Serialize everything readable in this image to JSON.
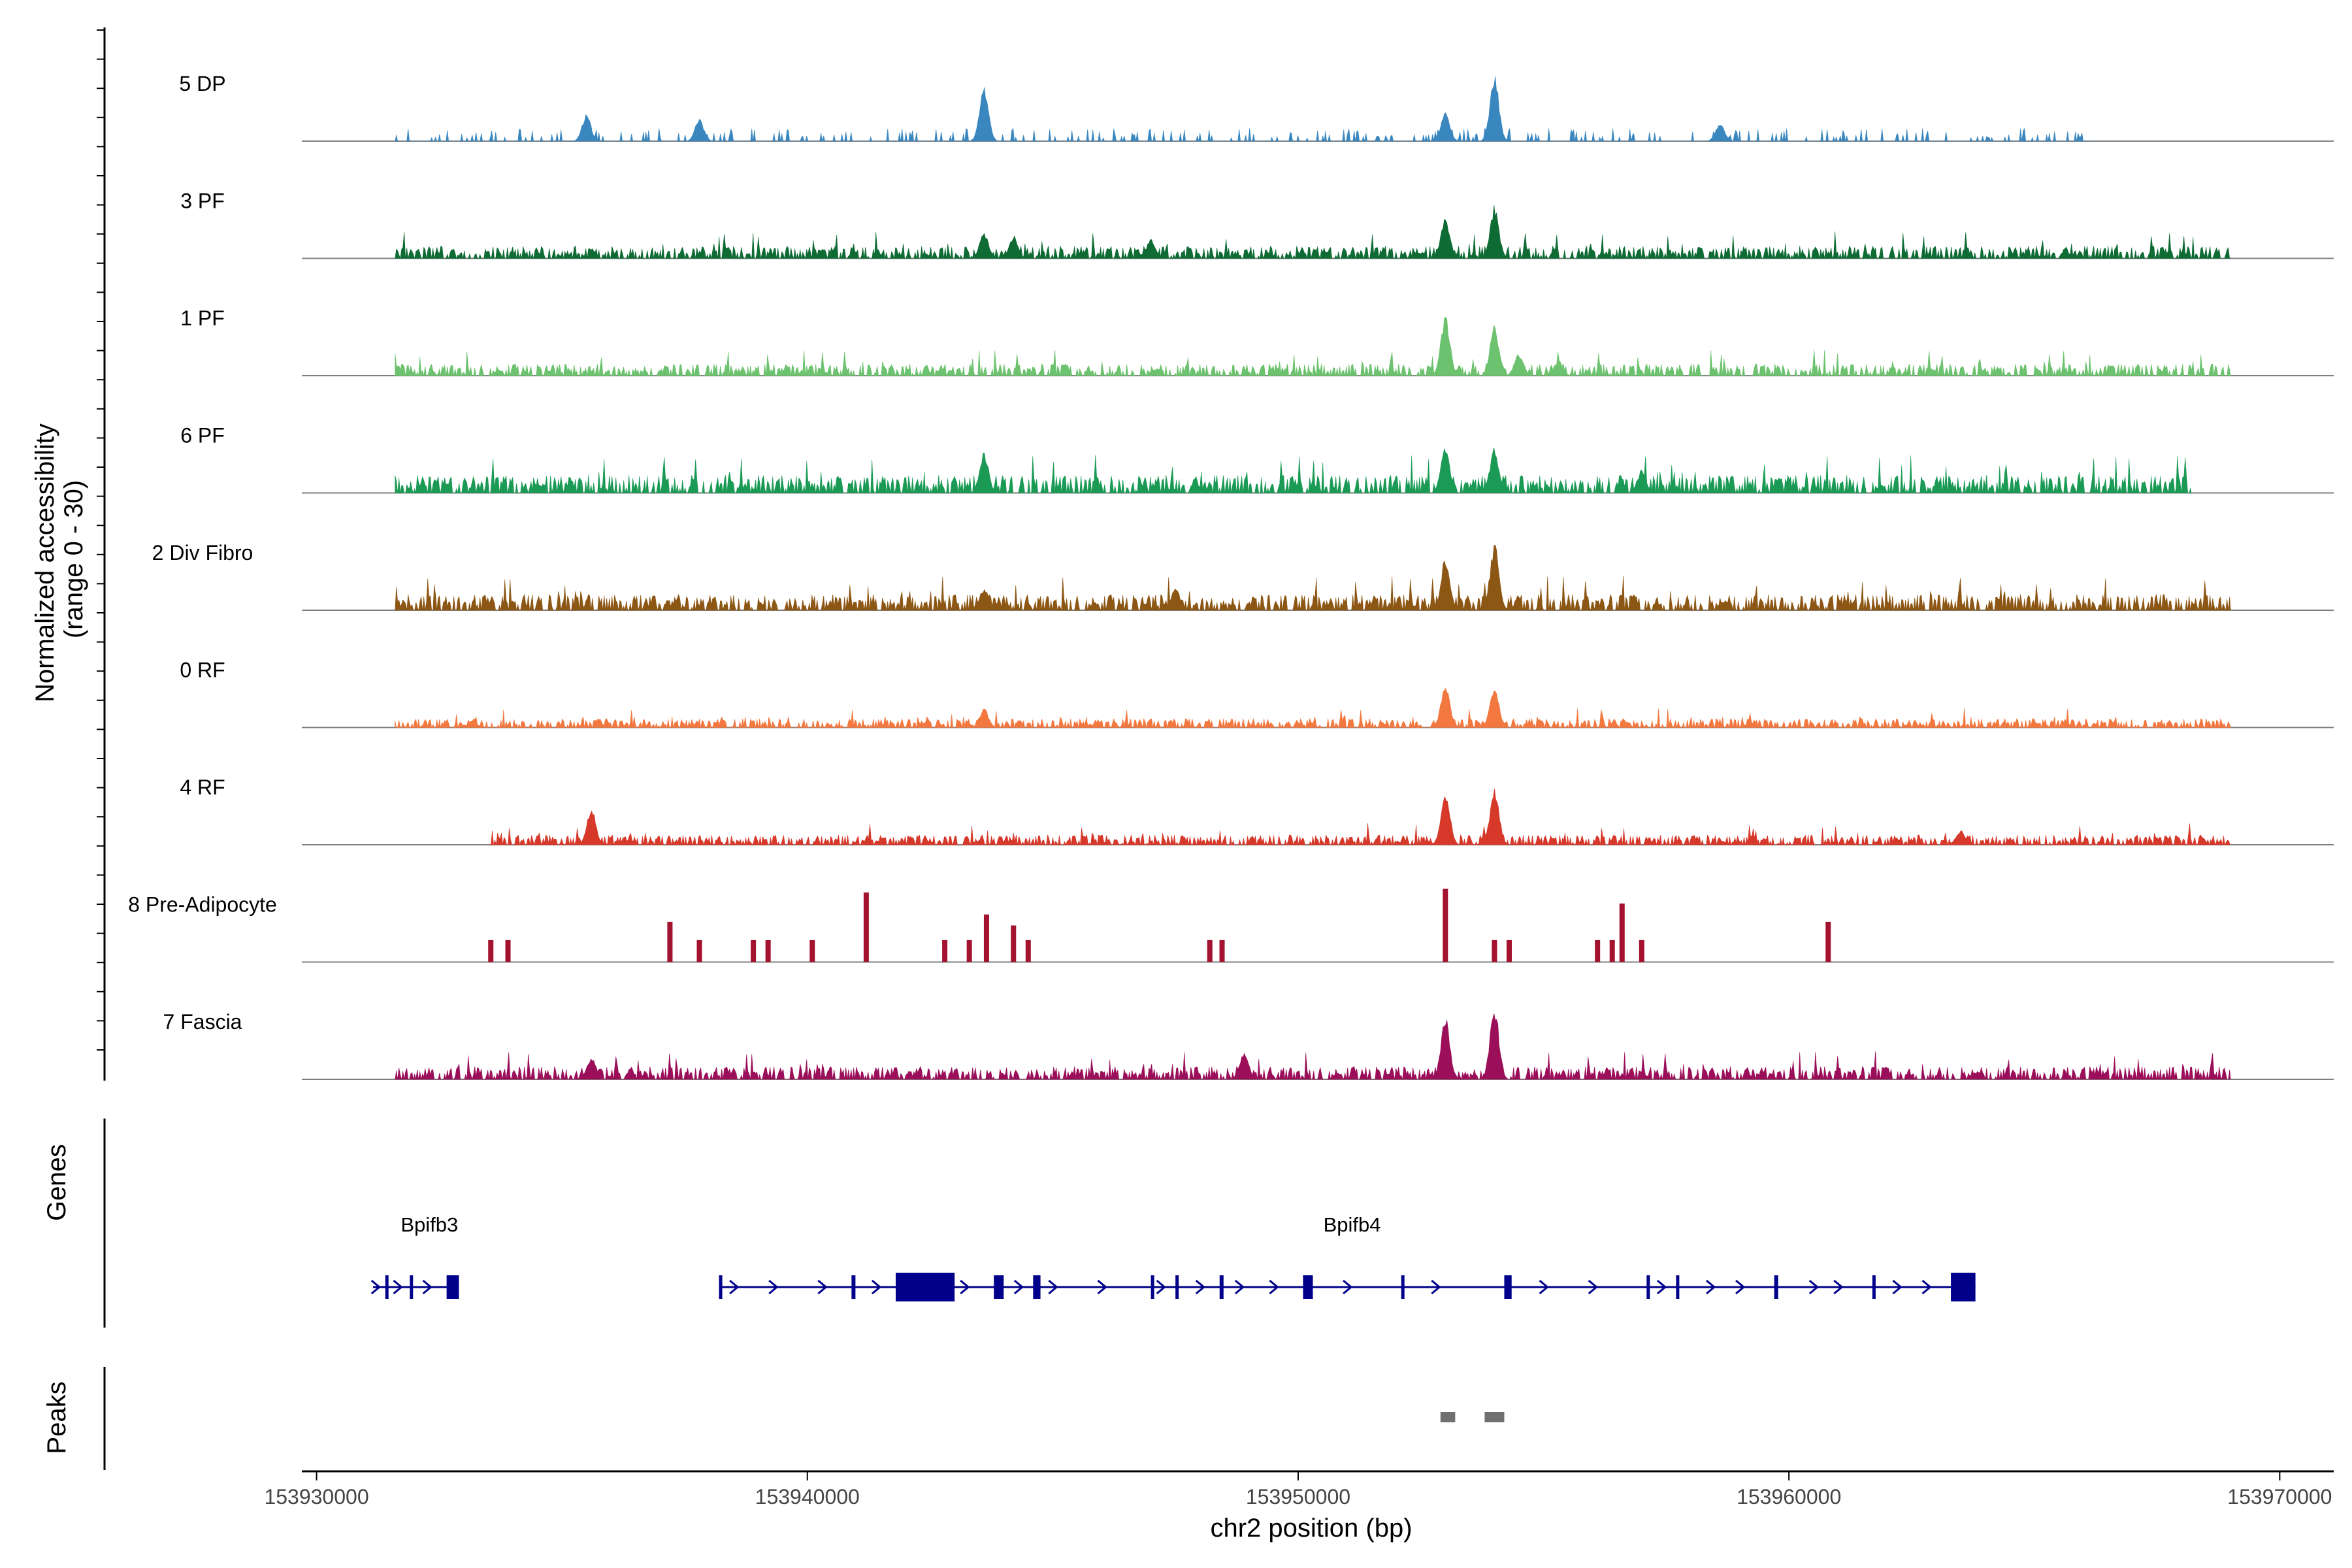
{
  "chart_data": {
    "type": "area",
    "title": "",
    "ylabel_line1": "Normalized accessibility",
    "ylabel_line2": "(range 0 - 30)",
    "xlabel": "chr2 position (bp)",
    "y_range": [
      0,
      30
    ],
    "x_range": [
      153929700,
      153971100
    ],
    "x_ticks": [
      153930000,
      153940000,
      153950000,
      153960000,
      153970000
    ],
    "x_tick_labels": [
      "153930000",
      "153940000",
      "153950000",
      "153960000",
      "153970000"
    ],
    "genes_label": "Genes",
    "peaks_label": "Peaks",
    "tracks": [
      {
        "name": "5 DP",
        "color": "#3A87C0",
        "start": 153931600,
        "end": 153966200,
        "base": 2.2,
        "seed": 11,
        "sparse": true,
        "peaks": [
          [
            153935500,
            7
          ],
          [
            153937800,
            6
          ],
          [
            153943600,
            15
          ],
          [
            153953000,
            8
          ],
          [
            153954000,
            18
          ],
          [
            153958600,
            5
          ]
        ]
      },
      {
        "name": "3 PF",
        "color": "#0E6B34",
        "start": 153931600,
        "end": 153969000,
        "base": 2.5,
        "seed": 23,
        "sparse": false,
        "peaks": [
          [
            153943600,
            7
          ],
          [
            153944200,
            6
          ],
          [
            153947000,
            5
          ],
          [
            153953000,
            11
          ],
          [
            153954000,
            14
          ]
        ]
      },
      {
        "name": "1 PF",
        "color": "#6CC26E",
        "start": 153931600,
        "end": 153969000,
        "base": 2.4,
        "seed": 37,
        "sparse": false,
        "peaks": [
          [
            153953000,
            16
          ],
          [
            153954000,
            14
          ],
          [
            153954500,
            6
          ],
          [
            153955300,
            4
          ]
        ]
      },
      {
        "name": "6 PF",
        "color": "#1A9A55",
        "start": 153931600,
        "end": 153968200,
        "base": 3.6,
        "seed": 41,
        "sparse": false,
        "peaks": [
          [
            153943600,
            11
          ],
          [
            153953000,
            12
          ],
          [
            153954000,
            12
          ],
          [
            153957000,
            6
          ]
        ]
      },
      {
        "name": "2 Div Fibro",
        "color": "#8C5614",
        "start": 153931600,
        "end": 153969000,
        "base": 3.2,
        "seed": 53,
        "sparse": false,
        "peaks": [
          [
            153943600,
            6
          ],
          [
            153947500,
            6
          ],
          [
            153953000,
            14
          ],
          [
            153954000,
            18
          ]
        ]
      },
      {
        "name": "0 RF",
        "color": "#F27840",
        "start": 153931600,
        "end": 153969000,
        "base": 1.8,
        "seed": 67,
        "sparse": false,
        "peaks": [
          [
            153943600,
            5
          ],
          [
            153953000,
            12
          ],
          [
            153954000,
            11
          ]
        ]
      },
      {
        "name": "4 RF",
        "color": "#D6382A",
        "start": 153933500,
        "end": 153969000,
        "base": 2.0,
        "seed": 71,
        "sparse": false,
        "peaks": [
          [
            153935600,
            10
          ],
          [
            153953000,
            15
          ],
          [
            153954000,
            16
          ],
          [
            153963500,
            4
          ]
        ]
      },
      {
        "name": "8 Pre-Adipocyte",
        "color": "#A3122E",
        "start": 153933500,
        "end": 153961000,
        "base": 0,
        "seed": 89,
        "sparse": true,
        "bars": [
          [
            153933550,
            6
          ],
          [
            153933900,
            6
          ],
          [
            153937200,
            11
          ],
          [
            153937800,
            6
          ],
          [
            153938900,
            6
          ],
          [
            153939200,
            6
          ],
          [
            153940100,
            6
          ],
          [
            153941200,
            19
          ],
          [
            153942800,
            6
          ],
          [
            153943300,
            6
          ],
          [
            153943650,
            13
          ],
          [
            153944200,
            10
          ],
          [
            153944500,
            6
          ],
          [
            153948200,
            6
          ],
          [
            153948450,
            6
          ],
          [
            153953000,
            20
          ],
          [
            153954000,
            6
          ],
          [
            153954300,
            6
          ],
          [
            153956100,
            6
          ],
          [
            153956400,
            6
          ],
          [
            153956600,
            16
          ],
          [
            153957000,
            6
          ],
          [
            153960800,
            11
          ]
        ]
      },
      {
        "name": "7 Fascia",
        "color": "#9B0F5A",
        "start": 153931600,
        "end": 153969000,
        "base": 2.6,
        "seed": 97,
        "sparse": false,
        "peaks": [
          [
            153935600,
            6
          ],
          [
            153948900,
            7
          ],
          [
            153953000,
            17
          ],
          [
            153954000,
            20
          ]
        ]
      }
    ],
    "genes": [
      {
        "name": "Bpifb3",
        "label_x": 153932300,
        "start": 153931150,
        "end": 153932900,
        "exons": [
          [
            153931400,
            153931450
          ],
          [
            153931900,
            153931950
          ],
          [
            153932650,
            153932900
          ]
        ],
        "chevrons": [
          153931200,
          153931650,
          153932250
        ]
      },
      {
        "name": "Bpifb4",
        "label_x": 153951100,
        "start": 153938200,
        "end": 153963800,
        "exons": [
          [
            153938200,
            153938260
          ],
          [
            153940900,
            153940980
          ],
          [
            153941800,
            153943000
          ],
          [
            153943800,
            153944000
          ],
          [
            153944600,
            153944750
          ],
          [
            153947000,
            153947060
          ],
          [
            153947500,
            153947550
          ],
          [
            153948400,
            153948480
          ],
          [
            153950100,
            153950300
          ],
          [
            153952100,
            153952150
          ],
          [
            153954200,
            153954350
          ],
          [
            153957100,
            153957160
          ],
          [
            153957700,
            153957750
          ],
          [
            153959700,
            153959780
          ],
          [
            153961700,
            153961750
          ],
          [
            153963300,
            153963800
          ]
        ],
        "chevrons": [
          153938500,
          153939300,
          153940300,
          153941400,
          153943200,
          153944300,
          153945000,
          153946000,
          153947200,
          153948000,
          153948800,
          153949500,
          153951000,
          153952800,
          153955000,
          153956000,
          153957400,
          153958400,
          153959000,
          153960500,
          153961000,
          153962200,
          153962800
        ]
      }
    ],
    "peaks_regions": [
      [
        153952900,
        153953200
      ],
      [
        153953800,
        153954200
      ]
    ]
  }
}
